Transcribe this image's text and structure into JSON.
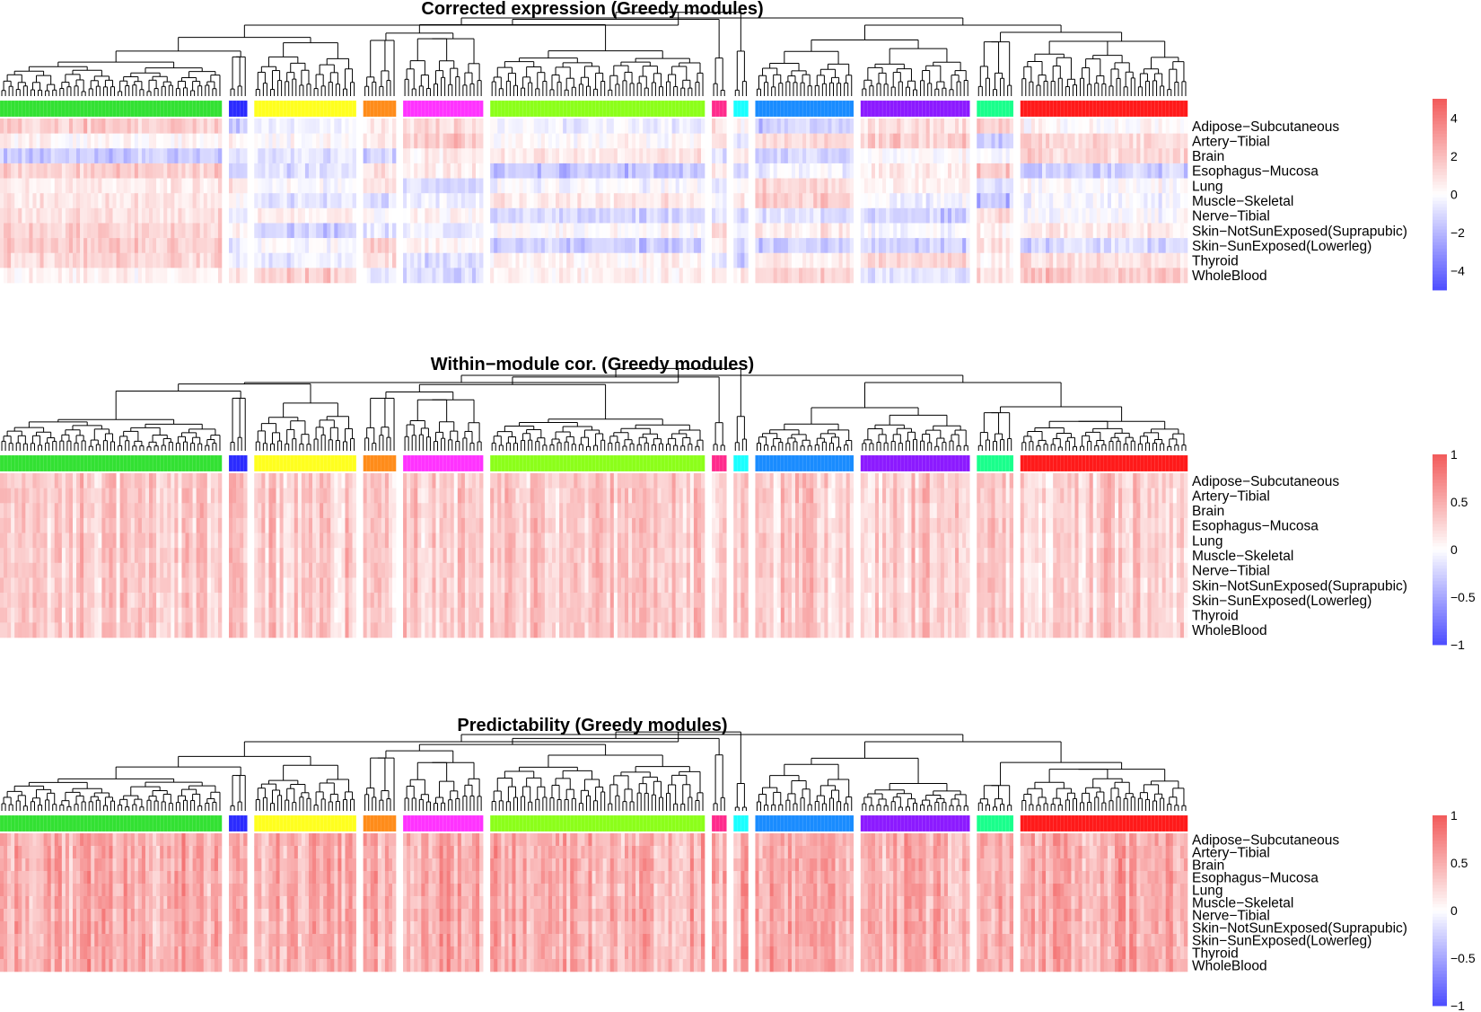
{
  "colors": {
    "low": "#4d4dff",
    "mid": "#ffffff",
    "high": "#f25a5a",
    "modules": [
      "#33e133",
      "#2b2bff",
      "#ffff1f",
      "#ff8c1a",
      "#ff33ff",
      "#8cff1a",
      "#ff2b8c",
      "#1affff",
      "#1a8cff",
      "#8c1aff",
      "#1aff8c",
      "#ff1a1a"
    ]
  },
  "chart_data": [
    {
      "type": "heatmap",
      "title": "Corrected expression (Greedy modules)",
      "rows": [
        "Adipose−Subcutaneous",
        "Artery−Tibial",
        "Brain",
        "Esophagus−Mucosa",
        "Lung",
        "Muscle−Skeletal",
        "Nerve−Tibial",
        "Skin−NotSunExposed(Suprapubic)",
        "Skin−SunExposed(Lowerleg)",
        "Thyroid",
        "WholeBlood"
      ],
      "modules": [
        {
          "color": "#33e133",
          "n_columns": 61
        },
        {
          "color": "#2b2bff",
          "n_columns": 5
        },
        {
          "color": "#ffff1f",
          "n_columns": 28
        },
        {
          "color": "#ff8c1a",
          "n_columns": 9
        },
        {
          "color": "#ff33ff",
          "n_columns": 22
        },
        {
          "color": "#8cff1a",
          "n_columns": 59
        },
        {
          "color": "#ff2b8c",
          "n_columns": 4
        },
        {
          "color": "#1affff",
          "n_columns": 4
        },
        {
          "color": "#1a8cff",
          "n_columns": 27
        },
        {
          "color": "#8c1aff",
          "n_columns": 30
        },
        {
          "color": "#1aff8c",
          "n_columns": 10
        },
        {
          "color": "#ff1a1a",
          "n_columns": 46
        }
      ],
      "scale": {
        "min": -5,
        "max": 5,
        "ticks": [
          "4",
          "2",
          "0",
          "−2",
          "−4"
        ],
        "tick_values": [
          4,
          2,
          0,
          -2,
          -4
        ]
      },
      "dendrogram": true
    },
    {
      "type": "heatmap",
      "title": "Within−module cor. (Greedy modules)",
      "rows": [
        "Adipose−Subcutaneous",
        "Artery−Tibial",
        "Brain",
        "Esophagus−Mucosa",
        "Lung",
        "Muscle−Skeletal",
        "Nerve−Tibial",
        "Skin−NotSunExposed(Suprapubic)",
        "Skin−SunExposed(Lowerleg)",
        "Thyroid",
        "WholeBlood"
      ],
      "modules": [
        {
          "color": "#33e133",
          "n_columns": 61
        },
        {
          "color": "#2b2bff",
          "n_columns": 5
        },
        {
          "color": "#ffff1f",
          "n_columns": 28
        },
        {
          "color": "#ff8c1a",
          "n_columns": 9
        },
        {
          "color": "#ff33ff",
          "n_columns": 22
        },
        {
          "color": "#8cff1a",
          "n_columns": 59
        },
        {
          "color": "#ff2b8c",
          "n_columns": 4
        },
        {
          "color": "#1affff",
          "n_columns": 4
        },
        {
          "color": "#1a8cff",
          "n_columns": 27
        },
        {
          "color": "#8c1aff",
          "n_columns": 30
        },
        {
          "color": "#1aff8c",
          "n_columns": 10
        },
        {
          "color": "#ff1a1a",
          "n_columns": 46
        }
      ],
      "scale": {
        "min": -1,
        "max": 1,
        "ticks": [
          "1",
          "0.5",
          "0",
          "−0.5",
          "−1"
        ],
        "tick_values": [
          1,
          0.5,
          0,
          -0.5,
          -1
        ]
      },
      "dendrogram": true
    },
    {
      "type": "heatmap",
      "title": "Predictability (Greedy modules)",
      "rows": [
        "Adipose−Subcutaneous",
        "Artery−Tibial",
        "Brain",
        "Esophagus−Mucosa",
        "Lung",
        "Muscle−Skeletal",
        "Nerve−Tibial",
        "Skin−NotSunExposed(Suprapubic)",
        "Skin−SunExposed(Lowerleg)",
        "Thyroid",
        "WholeBlood"
      ],
      "modules": [
        {
          "color": "#33e133",
          "n_columns": 61
        },
        {
          "color": "#2b2bff",
          "n_columns": 5
        },
        {
          "color": "#ffff1f",
          "n_columns": 28
        },
        {
          "color": "#ff8c1a",
          "n_columns": 9
        },
        {
          "color": "#ff33ff",
          "n_columns": 22
        },
        {
          "color": "#8cff1a",
          "n_columns": 59
        },
        {
          "color": "#ff2b8c",
          "n_columns": 4
        },
        {
          "color": "#1affff",
          "n_columns": 4
        },
        {
          "color": "#1a8cff",
          "n_columns": 27
        },
        {
          "color": "#8c1aff",
          "n_columns": 30
        },
        {
          "color": "#1aff8c",
          "n_columns": 10
        },
        {
          "color": "#ff1a1a",
          "n_columns": 46
        }
      ],
      "scale": {
        "min": -1,
        "max": 1,
        "ticks": [
          "1",
          "0.5",
          "0",
          "−0.5",
          "−1"
        ],
        "tick_values": [
          1,
          0.5,
          0,
          -0.5,
          -1
        ]
      },
      "dendrogram": true
    }
  ]
}
